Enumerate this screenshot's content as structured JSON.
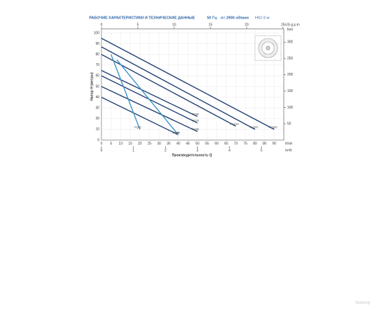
{
  "chart_data": {
    "type": "line",
    "title": "РАБОЧИЕ ХАРАКТЕРИСТИКИ И ТЕХНИЧЕСКИЕ ДАННЫЕ",
    "frequency": "50 Гц",
    "speed": "n= 2900 об/мин",
    "suction": "HS= 0 м",
    "y_label": "Напор H (метры)",
    "x_label": "Производительность Q",
    "x_unit": "l/min",
    "x2_unit": "US g.p.m",
    "x3_unit": "m³/h",
    "y2_unit": "feet",
    "watermark": "Вимхор",
    "xlim": [
      0,
      95
    ],
    "xticks": [
      0,
      5,
      10,
      15,
      20,
      25,
      30,
      35,
      40,
      45,
      50,
      55,
      60,
      65,
      70,
      75,
      80,
      85,
      90
    ],
    "ylim": [
      0,
      100
    ],
    "yticks": [
      0,
      10,
      20,
      30,
      40,
      50,
      60,
      70,
      80,
      90,
      100
    ],
    "x2lim": [
      0,
      25.1
    ],
    "x2ticks": [
      0,
      5,
      10,
      15,
      20,
      25
    ],
    "x3lim": [
      0,
      5.7
    ],
    "x3ticks": [
      0,
      1,
      2,
      3,
      4,
      5
    ],
    "y2lim": [
      0,
      328
    ],
    "y2ticks": [
      50,
      100,
      150,
      200,
      250,
      300
    ],
    "grid": true,
    "series": [
      {
        "name": "PQ300",
        "color": "#1f3f73",
        "x": [
          0,
          90
        ],
        "values": [
          95,
          10
        ]
      },
      {
        "name": "PQ200",
        "color": "#1f3f73",
        "x": [
          0,
          80
        ],
        "values": [
          87,
          10
        ]
      },
      {
        "name": "PQ100",
        "color": "#1f3f73",
        "x": [
          0,
          70
        ],
        "values": [
          80,
          13
        ]
      },
      {
        "name": "PQ90",
        "color": "#1f3f73",
        "x": [
          0,
          50
        ],
        "values": [
          65,
          22
        ]
      },
      {
        "name": "PQ70",
        "color": "#1f3f73",
        "x": [
          0,
          50
        ],
        "values": [
          60,
          16
        ]
      },
      {
        "name": "PQ65",
        "color": "#1f3f73",
        "x": [
          0,
          50
        ],
        "values": [
          50,
          8
        ]
      },
      {
        "name": "PQ60",
        "color": "#1f3f73",
        "x": [
          0,
          40
        ],
        "values": [
          40,
          5
        ]
      },
      {
        "name": "PQ81",
        "color": "#3a93c8",
        "x": [
          5,
          20
        ],
        "values": [
          80,
          10
        ]
      },
      {
        "name": "PQ80",
        "color": "#3a93c8",
        "x": [
          8,
          40
        ],
        "values": [
          75,
          5
        ]
      }
    ]
  }
}
